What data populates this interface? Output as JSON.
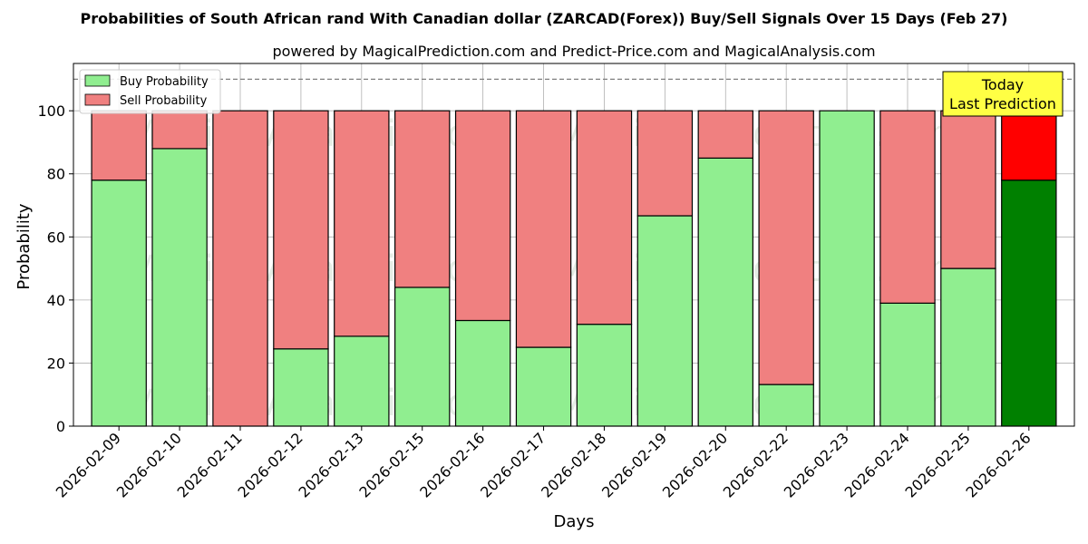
{
  "chart_data": {
    "type": "bar",
    "stacked": true,
    "title": "Probabilities of South African rand With Canadian dollar (ZARCAD(Forex)) Buy/Sell Signals Over 15 Days (Feb 27)",
    "subtitle": "powered by MagicalPrediction.com and Predict-Price.com and MagicalAnalysis.com",
    "xlabel": "Days",
    "ylabel": "Probability",
    "ylim": [
      0,
      115
    ],
    "yticks": [
      0,
      20,
      40,
      60,
      80,
      100
    ],
    "grid": true,
    "legend_position": "top-left",
    "reference_line": 110,
    "categories": [
      "2026-02-09",
      "2026-02-10",
      "2026-02-11",
      "2026-02-12",
      "2026-02-13",
      "2026-02-15",
      "2026-02-16",
      "2026-02-17",
      "2026-02-18",
      "2026-02-19",
      "2026-02-20",
      "2026-02-22",
      "2026-02-23",
      "2026-02-24",
      "2026-02-25",
      "2026-02-26"
    ],
    "series": [
      {
        "name": "Buy Probability",
        "values": [
          78,
          88,
          0,
          24.5,
          28.5,
          44,
          33.5,
          25,
          32.3,
          66.7,
          85,
          13.2,
          100,
          39,
          50,
          78
        ],
        "color": "#90ee90",
        "highlight_color": "#008000"
      },
      {
        "name": "Sell Probability",
        "values": [
          22,
          12,
          100,
          75.5,
          71.5,
          56,
          66.5,
          75,
          67.7,
          33.3,
          15,
          86.8,
          0,
          61,
          50,
          22
        ],
        "color": "#f08080",
        "highlight_color": "#ff0000"
      }
    ],
    "highlight_index": 15,
    "annotation": {
      "line1": "Today",
      "line2": "Last Prediction",
      "color": "#ffff44"
    },
    "watermarks": [
      "MagicalAnalysis.com",
      "MagicalPrediction.com"
    ]
  }
}
